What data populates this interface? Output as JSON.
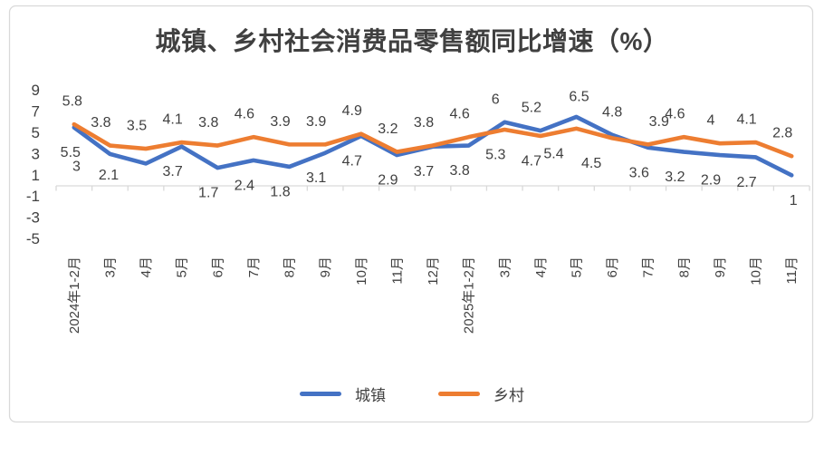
{
  "title": "城镇、乡村社会消费品零售额同比增速（%）",
  "chart_data": {
    "type": "line",
    "title": "城镇、乡村社会消费品零售额同比增速（%）",
    "categories": [
      "2024年1-2月",
      "3月",
      "4月",
      "5月",
      "6月",
      "7月",
      "8月",
      "9月",
      "10月",
      "11月",
      "12月",
      "2025年1-2月",
      "3月",
      "4月",
      "5月",
      "6月",
      "7月",
      "8月",
      "9月",
      "10月",
      "11月"
    ],
    "series": [
      {
        "name": "城镇",
        "color": "#4472C4",
        "values": [
          5.5,
          3,
          2.1,
          3.7,
          1.7,
          2.4,
          1.8,
          3.1,
          4.7,
          2.9,
          3.7,
          3.8,
          6,
          5.2,
          6.5,
          4.8,
          3.6,
          3.2,
          2.9,
          2.7,
          1
        ]
      },
      {
        "name": "乡村",
        "color": "#ED7D31",
        "values": [
          5.8,
          3.8,
          3.5,
          4.1,
          3.8,
          4.6,
          3.9,
          3.9,
          4.9,
          3.2,
          3.8,
          4.6,
          5.3,
          4.7,
          5.4,
          4.5,
          3.9,
          4.6,
          4,
          4.1,
          2.8
        ]
      }
    ],
    "y_ticks": [
      9,
      7,
      5,
      3,
      1,
      -1,
      -3,
      -5
    ],
    "ylim": [
      -6,
      10
    ],
    "xlabel": "",
    "ylabel": "",
    "grid": false,
    "data_labels": true,
    "legend_position": "bottom",
    "axis_color": "#D9D9D9",
    "label_color": "#404040"
  }
}
